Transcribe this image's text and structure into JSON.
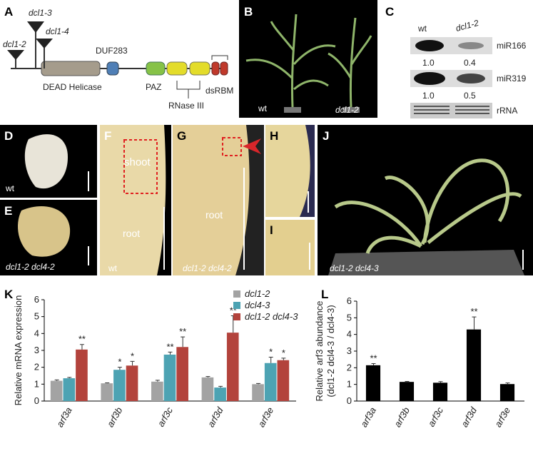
{
  "panels": {
    "labels": [
      "A",
      "B",
      "C",
      "D",
      "E",
      "F",
      "G",
      "H",
      "I",
      "J",
      "K",
      "L"
    ]
  },
  "panel_a": {
    "alleles": [
      "dcl1-2",
      "dcl1-3",
      "dcl1-4"
    ],
    "domains": [
      "DUF283",
      "DEAD Helicase",
      "PAZ",
      "RNase III",
      "dsRBM"
    ]
  },
  "panel_b": {
    "labels": [
      "wt",
      "dcl1-2"
    ]
  },
  "panel_c": {
    "columns": [
      "wt",
      "dcl1-2"
    ],
    "rows": [
      {
        "name": "miR166",
        "values": [
          "1.0",
          "0.4"
        ]
      },
      {
        "name": "miR319",
        "values": [
          "1.0",
          "0.5"
        ]
      },
      {
        "name": "rRNA"
      }
    ]
  },
  "panel_d": {
    "label": "wt"
  },
  "panel_e": {
    "label": "dcl1-2 dcl4-2"
  },
  "panel_f": {
    "labels": [
      "shoot",
      "root",
      "wt"
    ]
  },
  "panel_g": {
    "labels": [
      "root",
      "dcl1-2 dcl4-2"
    ]
  },
  "panel_j": {
    "label": "dcl1-2 dcl4-3"
  },
  "chart_data": [
    {
      "type": "bar",
      "ylabel": [
        "Relative mRNA expression"
      ],
      "categories": [
        "arf3a",
        "arf3b",
        "arf3c",
        "arf3d",
        "arf3e"
      ],
      "series": [
        {
          "name": "dcl1-2",
          "color": "#a3a3a3",
          "values": [
            1.2,
            1.05,
            1.15,
            1.4,
            1.0
          ],
          "errors": [
            0.05,
            0.03,
            0.08,
            0.05,
            0.04
          ],
          "significance": [
            null,
            null,
            null,
            null,
            null
          ]
        },
        {
          "name": "dcl4-3",
          "color": "#4da3b3",
          "values": [
            1.35,
            1.85,
            2.75,
            0.8,
            2.25
          ],
          "errors": [
            0.05,
            0.15,
            0.15,
            0.07,
            0.35
          ],
          "significance": [
            null,
            "*",
            "**",
            null,
            "*"
          ]
        },
        {
          "name": "dcl1-2 dcl4-3",
          "color": "#b3433c",
          "values": [
            3.05,
            2.1,
            3.2,
            4.05,
            2.42
          ],
          "errors": [
            0.3,
            0.25,
            0.6,
            1.0,
            0.12
          ],
          "significance": [
            "**",
            "*",
            "**",
            "**",
            "*"
          ]
        }
      ],
      "ylim": [
        0,
        6
      ],
      "yticks": [
        0,
        1,
        2,
        3,
        4,
        5,
        6
      ],
      "legend": "top-right"
    },
    {
      "type": "bar",
      "ylabel": [
        "Relative arf3 abundance",
        "(dcl1-2 dcl4-3 / dcl4-3)"
      ],
      "categories": [
        "arf3a",
        "arf3b",
        "arf3c",
        "arf3d",
        "arf3e"
      ],
      "values": [
        2.15,
        1.15,
        1.1,
        4.3,
        1.02
      ],
      "errors": [
        0.1,
        0.03,
        0.07,
        0.75,
        0.07
      ],
      "significance": [
        "**",
        null,
        null,
        "**",
        null
      ],
      "color": "#000000",
      "ylim": [
        0,
        6
      ],
      "yticks": [
        0,
        1,
        2,
        3,
        4,
        5,
        6
      ]
    }
  ]
}
